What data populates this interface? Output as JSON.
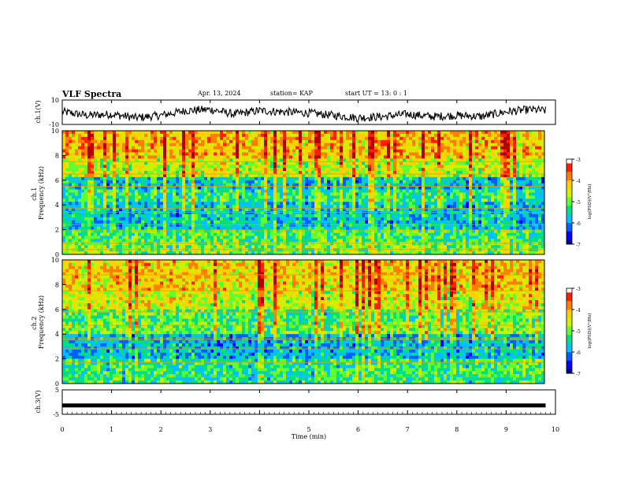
{
  "header": {
    "title": "VLF Spectra",
    "date": "Apr. 13, 2024",
    "station": "station= KAP",
    "start": "start UT = 13: 0 : 1"
  },
  "colors": {
    "colormap": [
      "#00008b",
      "#0000ff",
      "#0060ff",
      "#00c0ff",
      "#00e080",
      "#60ff30",
      "#d0f000",
      "#ffd000",
      "#ff8000",
      "#ff2000",
      "#b00000",
      "#ffffff"
    ]
  },
  "chart_data": [
    {
      "id": "ch1-waveform",
      "type": "line",
      "ylabel": "ch.1(V)",
      "ylim": [
        -10,
        10
      ],
      "yticklabels": [
        "10",
        "-10"
      ],
      "x": [
        0,
        0.5,
        1.0,
        1.5,
        2.0,
        2.5,
        3.0,
        3.5,
        4.0,
        4.5,
        5.0,
        5.5,
        6.0,
        6.5,
        7.0,
        7.5,
        8.0,
        8.5,
        9.0,
        9.5,
        9.8
      ],
      "y": [
        0,
        -3,
        -2,
        -5,
        -3,
        1,
        2,
        -2,
        1,
        0,
        -1,
        -3,
        -5,
        -4,
        -2,
        -4,
        -3,
        -4,
        0,
        2,
        1
      ]
    },
    {
      "id": "ch1-spectrogram",
      "type": "heatmap",
      "ylabel": "ch.1\nFrequency (kHz)",
      "ylim": [
        0,
        10
      ],
      "yticklabels": [
        "0",
        "2",
        "4",
        "6",
        "8",
        "10"
      ],
      "colorbar": {
        "label": "log(PSD)(V²/Hz)",
        "range": [
          -7,
          -3
        ],
        "ticks": [
          "-3",
          "-4",
          "-5",
          "-6",
          "-7"
        ]
      }
    },
    {
      "id": "ch2-spectrogram",
      "type": "heatmap",
      "ylabel": "ch.2\nFrequency (kHz)",
      "ylim": [
        0,
        10
      ],
      "yticklabels": [
        "0",
        "2",
        "4",
        "6",
        "8",
        "10"
      ],
      "colorbar": {
        "label": "log(PSD)(V²/Hz)",
        "range": [
          -7,
          -3
        ],
        "ticks": [
          "-3",
          "-4",
          "-5",
          "-6",
          "-7"
        ]
      }
    },
    {
      "id": "ch3-waveform",
      "type": "line",
      "ylabel": "ch.3(V)",
      "ylim": [
        -5,
        5
      ],
      "yticklabels": [
        "5",
        "-5"
      ],
      "x": [
        0,
        9.8
      ],
      "y": [
        -1.4,
        -1.4
      ]
    }
  ],
  "xaxis": {
    "label": "Time (min)",
    "range": [
      0,
      10
    ],
    "ticklabels": [
      "0",
      "1",
      "2",
      "3",
      "4",
      "5",
      "6",
      "7",
      "8",
      "9",
      "10"
    ]
  }
}
